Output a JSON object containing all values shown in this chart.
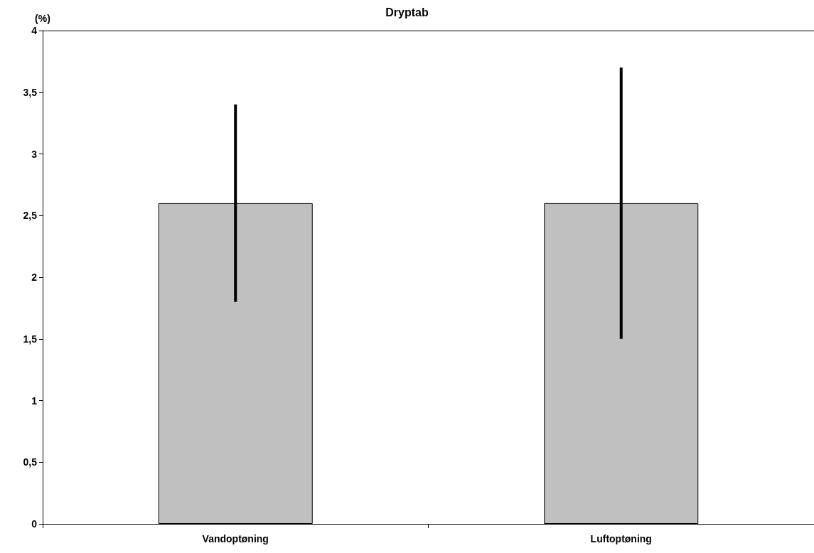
{
  "chart_data": {
    "type": "bar",
    "title": "Dryptab",
    "ylabel": "(%)",
    "categories": [
      "Vandoptøning",
      "Luftoptøning"
    ],
    "values": [
      2.6,
      2.6
    ],
    "color": "#c0c0c0",
    "errors": [
      0.8,
      1.1
    ],
    "ylim": [
      0,
      4
    ],
    "yticks": [
      0,
      {
        "value": 0.5,
        "label": "0,5"
      },
      1,
      {
        "value": 1.5,
        "label": "1,5"
      },
      2,
      {
        "value": 2.5,
        "label": "2,5"
      },
      3,
      {
        "value": 3.5,
        "label": "3,5"
      },
      4
    ],
    "grid": false
  }
}
